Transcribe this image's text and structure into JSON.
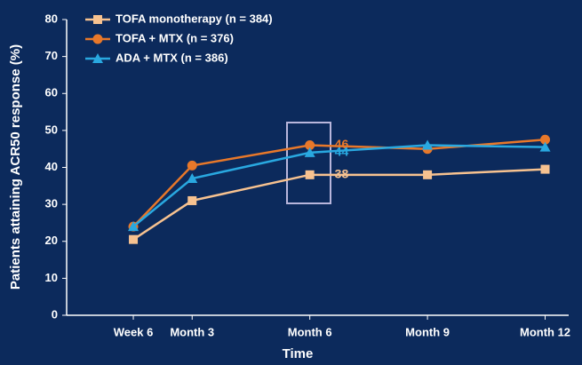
{
  "chart_data": {
    "type": "line",
    "x_label": "Time",
    "y_label": "Patients attaining ACR50 response (%)",
    "x": [
      1.5,
      3,
      6,
      9,
      12
    ],
    "xlim": [
      -0.2,
      12.6
    ],
    "xticks": [
      {
        "value": 1.5,
        "label": "Week 6"
      },
      {
        "value": 3,
        "label": "Month 3"
      },
      {
        "value": 6,
        "label": "Month 6"
      },
      {
        "value": 9,
        "label": "Month 9"
      },
      {
        "value": 12,
        "label": "Month 12"
      }
    ],
    "ylim": [
      0,
      80
    ],
    "yticks": [
      0,
      10,
      20,
      30,
      40,
      50,
      60,
      70,
      80
    ],
    "grid": false,
    "legend": "top-left",
    "series": [
      {
        "name": "TOFA monotherapy (n = 384)",
        "color": "#f7c290",
        "marker": "square",
        "values": [
          20.5,
          31,
          38,
          38,
          39.5
        ],
        "value_labels": [
          null,
          null,
          "38",
          null,
          null
        ]
      },
      {
        "name": "TOFA + MTX (n = 376)",
        "color": "#e8782a",
        "marker": "circle",
        "values": [
          24,
          40.5,
          46,
          45,
          47.5
        ],
        "value_labels": [
          null,
          null,
          "46",
          null,
          null
        ]
      },
      {
        "name": "ADA + MTX (n = 386)",
        "color": "#29a8e0",
        "marker": "triangle",
        "values": [
          24,
          37,
          44,
          46,
          45.5
        ],
        "value_labels": [
          null,
          null,
          "44",
          null,
          null
        ]
      }
    ]
  }
}
